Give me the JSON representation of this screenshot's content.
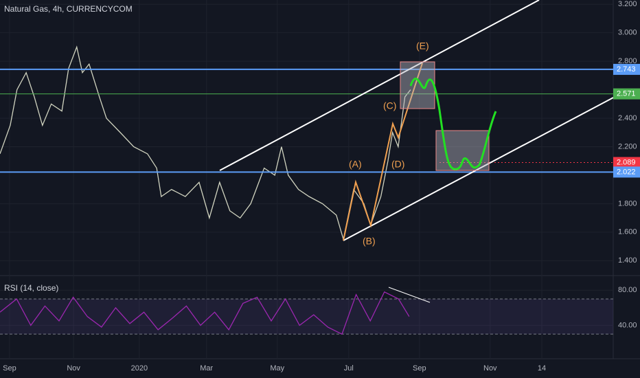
{
  "chart_data": [
    {
      "type": "line",
      "title": "Natural Gas, 4h, CURRENCYCOM",
      "color": "#d1d4c0",
      "x": [
        -0.27,
        0.02,
        0.21,
        0.47,
        0.7,
        0.93,
        1.18,
        1.48,
        1.67,
        1.9,
        2.06,
        2.25,
        2.54,
        2.74,
        3.13,
        3.51,
        3.9,
        4.16,
        4.29,
        4.58,
        4.97,
        5.36,
        5.65,
        5.94,
        6.23,
        6.52,
        6.82,
        7.2,
        7.5,
        7.69,
        7.88,
        8.17,
        8.47,
        8.85,
        9.24,
        9.44,
        9.73,
        10.02,
        10.21,
        10.5,
        10.7,
        10.83,
        10.99,
        11.18,
        11.34
      ],
      "values": [
        2.15,
        2.35,
        2.6,
        2.72,
        2.55,
        2.35,
        2.5,
        2.45,
        2.75,
        2.9,
        2.72,
        2.78,
        2.55,
        2.4,
        2.3,
        2.2,
        2.15,
        2.05,
        1.85,
        1.9,
        1.85,
        1.95,
        1.7,
        1.95,
        1.75,
        1.7,
        1.8,
        2.05,
        2.0,
        2.2,
        2.0,
        1.9,
        1.85,
        1.8,
        1.72,
        1.55,
        1.9,
        1.8,
        1.65,
        1.85,
        2.1,
        2.3,
        2.2,
        2.55,
        2.6
      ],
      "xlim": [
        -0.27,
        17.07
      ],
      "ylim": [
        1.3,
        3.23
      ],
      "yticks": [
        {
          "value": 3.2,
          "label": "3.200"
        },
        {
          "value": 3.0,
          "label": "3.000"
        },
        {
          "value": 2.8,
          "label": "2.800"
        },
        {
          "value": 2.4,
          "label": "2.400"
        },
        {
          "value": 2.2,
          "label": "2.200"
        },
        {
          "value": 1.8,
          "label": "1.800"
        },
        {
          "value": 1.6,
          "label": "1.600"
        },
        {
          "value": 1.4,
          "label": "1.400"
        }
      ],
      "xticks": [
        {
          "value": 0,
          "label": "Sep"
        },
        {
          "value": 1.81,
          "label": "Nov"
        },
        {
          "value": 3.67,
          "label": "2020"
        },
        {
          "value": 5.57,
          "label": "Mar"
        },
        {
          "value": 7.57,
          "label": "May"
        },
        {
          "value": 9.59,
          "label": "Jul"
        },
        {
          "value": 11.59,
          "label": "Sep"
        },
        {
          "value": 13.59,
          "label": "Nov"
        },
        {
          "value": 15.05,
          "label": "14"
        }
      ],
      "levels": [
        {
          "value": 2.743,
          "label": "2.743",
          "color": "#5b9cf6"
        },
        {
          "value": 2.571,
          "label": "2.571",
          "color": "#4caf50"
        },
        {
          "value": 2.089,
          "label": "2.089",
          "color": "#f23645"
        },
        {
          "value": 2.022,
          "label": "2.022",
          "color": "#5b9cf6"
        }
      ],
      "annotations": [
        "(A)",
        "(B)",
        "(C)",
        "(D)",
        "(E)"
      ]
    },
    {
      "type": "line",
      "title": "RSI (14, close)",
      "color": "#9c27b0",
      "x": [
        -0.27,
        0.2,
        0.6,
        1.0,
        1.4,
        1.8,
        2.2,
        2.6,
        3.0,
        3.4,
        3.8,
        4.2,
        4.6,
        5.0,
        5.4,
        5.8,
        6.2,
        6.6,
        7.0,
        7.4,
        7.8,
        8.2,
        8.6,
        9.0,
        9.4,
        9.8,
        10.2,
        10.6,
        11.0,
        11.3
      ],
      "values": [
        55,
        70,
        40,
        62,
        45,
        72,
        50,
        38,
        60,
        42,
        55,
        35,
        48,
        62,
        40,
        55,
        35,
        65,
        72,
        45,
        70,
        40,
        52,
        38,
        30,
        75,
        45,
        78,
        70,
        50
      ],
      "xlim": [
        -0.27,
        17.07
      ],
      "ylim": [
        2,
        95
      ],
      "yticks": [
        {
          "value": 80,
          "label": "80.00"
        },
        {
          "value": 40,
          "label": "40.00"
        }
      ],
      "levels": [
        70,
        30
      ]
    }
  ]
}
